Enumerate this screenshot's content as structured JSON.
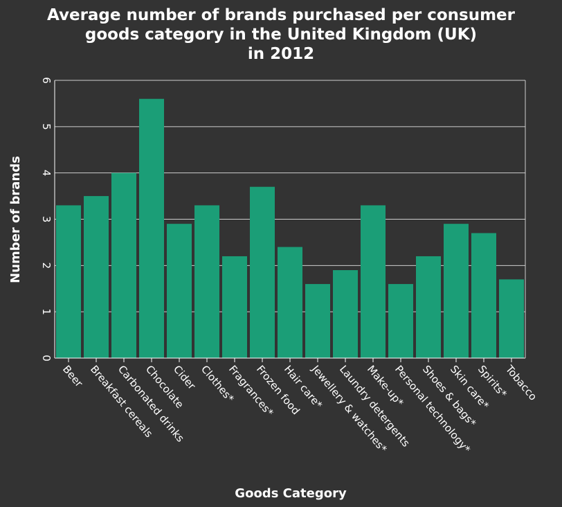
{
  "chart_data": {
    "type": "bar",
    "title": "Average number of brands purchased per consumer\ngoods category in the United Kingdom (UK)\nin 2012",
    "xlabel": "Goods Category",
    "ylabel": "Number of brands",
    "ylim": [
      0,
      6
    ],
    "yticks": [
      "0",
      "1",
      "2",
      "3",
      "4",
      "5",
      "6"
    ],
    "grid": true,
    "bar_color": "#1b9e77",
    "background_color": "#333333",
    "categories": [
      "Beer",
      "Breakfast cereals",
      "Carbonated drinks",
      "Chocolate",
      "Cider",
      "Clothes*",
      "Fragrances*",
      "Frozen food",
      "Hair care*",
      "Jewellery & watches*",
      "Laundry detergents",
      "Make-up*",
      "Personal technology*",
      "Shoes & bags*",
      "Skin care*",
      "Spirits*",
      "Tobacco"
    ],
    "values": [
      3.3,
      3.5,
      4.0,
      5.6,
      2.9,
      3.3,
      2.2,
      3.7,
      2.4,
      1.6,
      1.9,
      3.3,
      1.6,
      2.2,
      2.9,
      2.7,
      1.7
    ]
  }
}
